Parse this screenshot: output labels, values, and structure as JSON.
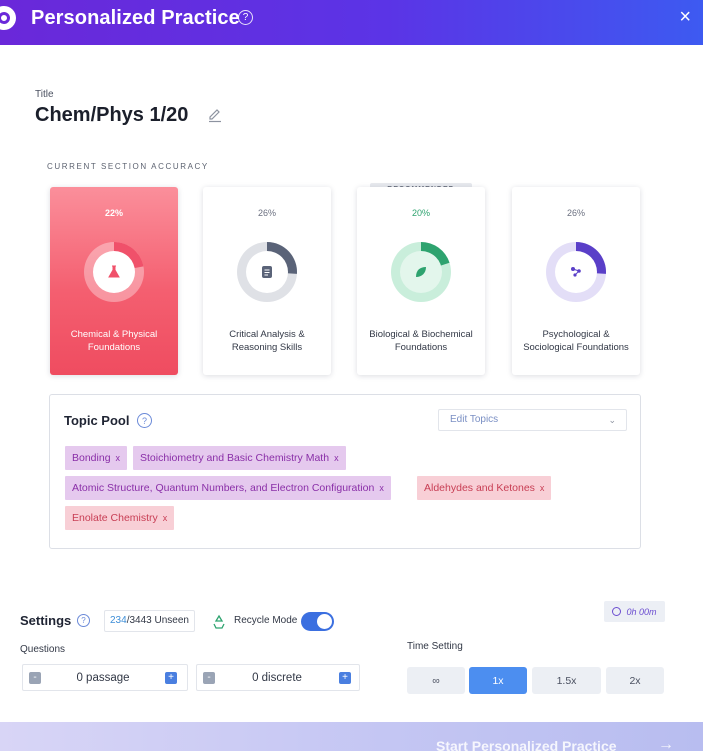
{
  "header": {
    "title": "Personalized Practice",
    "help_glyph": "?",
    "close_glyph": "×"
  },
  "title_field": {
    "label": "Title",
    "value": "Chem/Phys 1/20"
  },
  "section_accuracy_label": "CURRENT SECTION ACCURACY",
  "recommended_badge": "RECOMMENDED",
  "sections": [
    {
      "percent": "22%",
      "accuracy": 22,
      "name": "Chemical & Physical Foundations",
      "icon": "flask-icon",
      "color": "#f0516a",
      "selected": true
    },
    {
      "percent": "26%",
      "accuracy": 26,
      "name": "Critical Analysis & Reasoning Skills",
      "icon": "document-icon",
      "color": "#5a6378",
      "selected": false
    },
    {
      "percent": "20%",
      "accuracy": 20,
      "name": "Biological & Biochemical Foundations",
      "icon": "leaf-icon",
      "color": "#2ea36f",
      "selected": false,
      "recommended": true
    },
    {
      "percent": "26%",
      "accuracy": 26,
      "name": "Psychological & Sociological Foundations",
      "icon": "molecule-icon",
      "color": "#5a3fc8",
      "selected": false
    }
  ],
  "topic_pool": {
    "title": "Topic Pool",
    "help_glyph": "?",
    "edit_topics_placeholder": "Edit Topics",
    "tags": [
      {
        "label": "Bonding",
        "remove": "x",
        "color": "purple"
      },
      {
        "label": "Stoichiometry and Basic Chemistry Math",
        "remove": "x",
        "color": "purple"
      },
      {
        "label": "Atomic Structure, Quantum Numbers, and Electron Configuration",
        "remove": "x",
        "color": "purple"
      },
      {
        "label": "Aldehydes and Ketones",
        "remove": "x",
        "color": "pink"
      },
      {
        "label": "Enolate Chemistry",
        "remove": "x",
        "color": "pink"
      }
    ]
  },
  "settings": {
    "label": "Settings",
    "help_glyph": "?",
    "unseen_count": "234",
    "unseen_rest": "/3443 Unseen",
    "recycle_label": "Recycle Mode",
    "recycle_on": true,
    "timer": "0h 00m",
    "questions_label": "Questions",
    "passage_value": "0 passage",
    "discrete_value": "0 discrete",
    "minus_glyph": "-",
    "plus_glyph": "+",
    "time_setting_label": "Time Setting",
    "time_options": [
      "∞",
      "1x",
      "1.5x",
      "2x"
    ],
    "time_selected": "1x"
  },
  "start_button": {
    "label": "Start Personalized Practice",
    "arrow": "→"
  }
}
